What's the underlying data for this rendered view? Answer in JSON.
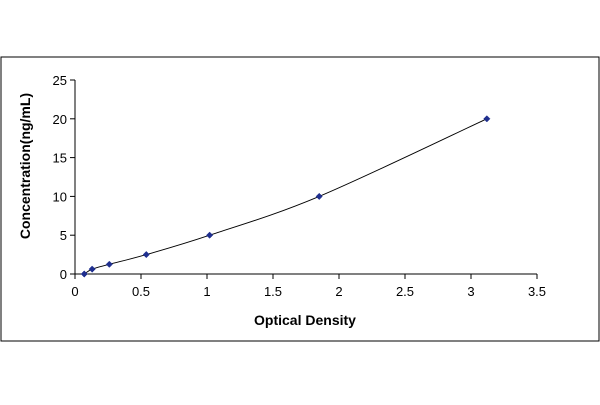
{
  "chart_data": {
    "type": "scatter",
    "title": "",
    "xlabel": "Optical Density",
    "ylabel": "Concentration(ng/mL)",
    "xlim": [
      0,
      3.5
    ],
    "ylim": [
      0,
      25
    ],
    "x_ticks": [
      "0",
      "0.5",
      "1",
      "1.5",
      "2",
      "2.5",
      "3",
      "3.5"
    ],
    "y_ticks": [
      "0",
      "5",
      "10",
      "15",
      "20",
      "25"
    ],
    "grid": false,
    "legend": "none",
    "series": [
      {
        "points": [
          {
            "x": 0.07,
            "y": 0.0
          },
          {
            "x": 0.13,
            "y": 0.625
          },
          {
            "x": 0.26,
            "y": 1.25
          },
          {
            "x": 0.54,
            "y": 2.5
          },
          {
            "x": 1.02,
            "y": 5.0
          },
          {
            "x": 1.85,
            "y": 10.0
          },
          {
            "x": 3.12,
            "y": 20.0
          }
        ],
        "trendline": "smooth-curve",
        "marker_color": "#1f2f8f",
        "line_color": "#000000"
      }
    ]
  }
}
